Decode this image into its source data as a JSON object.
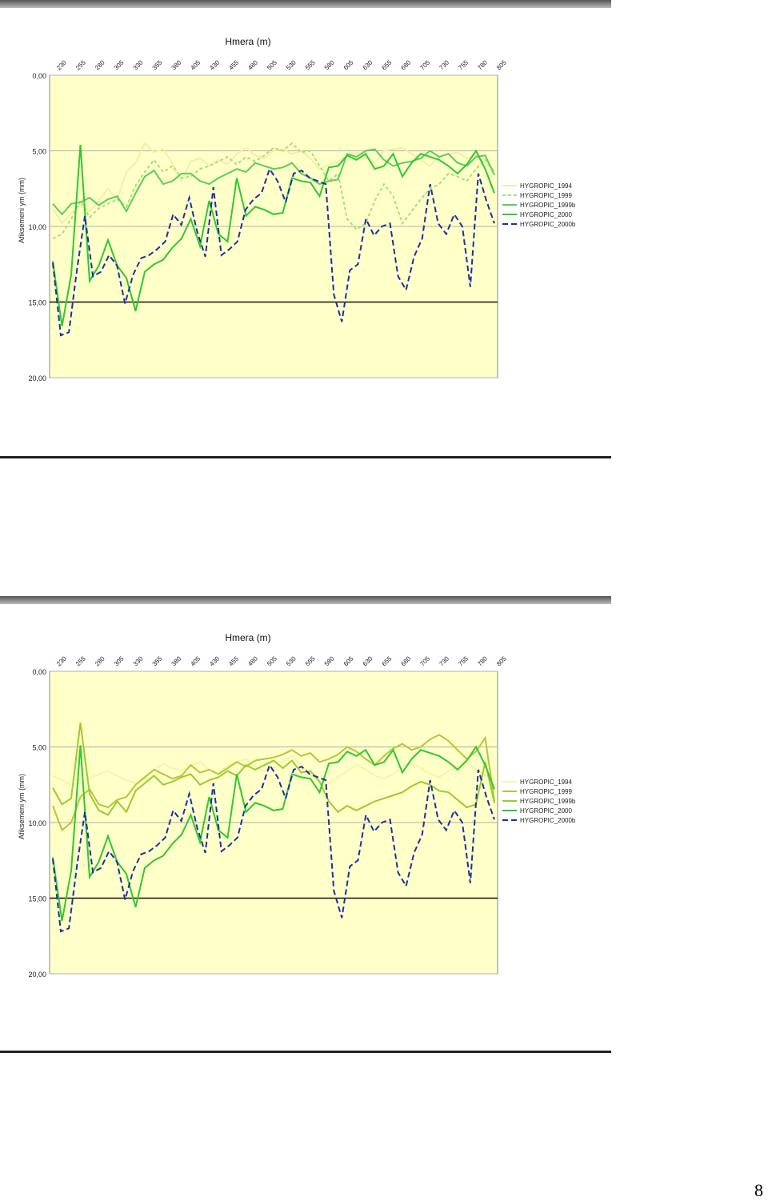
{
  "page_number": "8",
  "chart_data": [
    {
      "type": "line",
      "title": "Hmera (m)",
      "ylabel": "Afiksemeni ym (mm)",
      "ylim": [
        0,
        20
      ],
      "y_inverted": true,
      "y_ticks": [
        "0,00",
        "5,00",
        "10,00",
        "15,00",
        "20,00"
      ],
      "x_tick_labels": [
        "230",
        "255",
        "280",
        "305",
        "330",
        "355",
        "380",
        "405",
        "430",
        "455",
        "480",
        "505",
        "530",
        "555",
        "580",
        "605",
        "630",
        "655",
        "680",
        "705",
        "730",
        "755",
        "780",
        "805"
      ],
      "legend_position": "right",
      "background": "#ffffc8",
      "series": [
        {
          "name": "HYGROPIC_1994",
          "color": "#f0f0a8",
          "dash": "",
          "values": [
            8.8,
            9.8,
            9.1,
            8.6,
            9.0,
            8.3,
            7.5,
            8.2,
            6.4,
            5.8,
            4.5,
            5.1,
            4.9,
            5.8,
            7.0,
            5.7,
            5.5,
            6.0,
            5.6,
            5.9,
            5.2,
            4.8,
            5.3,
            5.5,
            5.0,
            4.9,
            5.2,
            5.0,
            5.5,
            6.2,
            5.9,
            5.7,
            5.3,
            5.1,
            5.4,
            5.8,
            5.0,
            4.9,
            4.8,
            5.2,
            5.6,
            6.0,
            5.4,
            5.2,
            5.1,
            5.5,
            5.3,
            5.8,
            6.3
          ]
        },
        {
          "name": "HYGROPIC_1999",
          "color": "#a6e07a",
          "dash": "4,3",
          "values": [
            10.8,
            10.5,
            9.5,
            8.3,
            9.4,
            8.8,
            8.5,
            8.2,
            8.7,
            7.3,
            6.4,
            5.6,
            6.4,
            6.0,
            6.8,
            6.7,
            6.2,
            6.0,
            5.7,
            5.4,
            5.9,
            5.4,
            5.7,
            5.3,
            4.8,
            5.0,
            4.5,
            5.1,
            5.0,
            6.0,
            7.0,
            6.5,
            9.5,
            10.2,
            9.8,
            8.3,
            7.2,
            8.0,
            9.8,
            9.0,
            8.2,
            7.5,
            7.2,
            6.5,
            6.7,
            7.0,
            6.2,
            5.6,
            6.4
          ]
        },
        {
          "name": "HYGROPIC_1999b",
          "color": "#5ccd5a",
          "dash": "",
          "values": [
            8.5,
            9.2,
            8.5,
            8.4,
            8.1,
            8.6,
            8.2,
            8.0,
            9.0,
            7.8,
            6.7,
            6.3,
            7.2,
            7.0,
            6.5,
            6.5,
            7.0,
            7.2,
            6.8,
            6.5,
            6.2,
            6.4,
            5.8,
            6.0,
            6.2,
            6.1,
            5.8,
            6.5,
            6.8,
            7.2,
            7.0,
            6.9,
            5.2,
            5.4,
            5.0,
            4.9,
            5.6,
            6.0,
            5.8,
            5.7,
            5.5,
            5.0,
            5.4,
            5.2,
            5.8,
            6.0,
            5.4,
            5.3,
            6.6
          ]
        },
        {
          "name": "HYGROPIC_2000",
          "color": "#2fc82f",
          "dash": "",
          "values": [
            12.3,
            16.6,
            13.2,
            4.6,
            13.6,
            12.6,
            10.9,
            12.6,
            13.4,
            15.6,
            13.0,
            12.5,
            12.2,
            11.4,
            10.8,
            9.5,
            11.3,
            8.3,
            10.5,
            11.0,
            6.8,
            9.3,
            8.7,
            8.9,
            9.2,
            9.1,
            6.8,
            7.0,
            7.1,
            8.0,
            6.1,
            6.0,
            5.3,
            5.6,
            5.2,
            6.2,
            6.0,
            5.2,
            6.7,
            5.8,
            5.2,
            5.4,
            5.6,
            6.0,
            6.5,
            5.9,
            5.0,
            6.2,
            7.8
          ]
        },
        {
          "name": "HYGROPIC_2000b",
          "color": "#1a2fa5",
          "dash": "7,4",
          "values": [
            12.4,
            17.2,
            17.0,
            12.9,
            9.3,
            13.3,
            13.0,
            11.9,
            12.6,
            15.1,
            13.2,
            12.1,
            11.9,
            11.5,
            11.0,
            9.2,
            9.9,
            8.1,
            10.4,
            12.0,
            7.4,
            11.9,
            11.5,
            11.0,
            8.9,
            8.2,
            7.8,
            6.2,
            7.0,
            8.4,
            6.5,
            6.3,
            6.8,
            7.0,
            7.2,
            14.5,
            16.3,
            12.9,
            12.5,
            9.5,
            10.6,
            10.0,
            9.8,
            13.3,
            14.2,
            12.0,
            10.8,
            7.2,
            9.8,
            10.5,
            9.2,
            10.0,
            14.0,
            6.5,
            8.3,
            9.8
          ]
        }
      ]
    },
    {
      "type": "line",
      "title": "Hmera (m)",
      "ylabel": "Afiksemeni ym (mm)",
      "ylim": [
        0,
        20
      ],
      "y_inverted": true,
      "y_ticks": [
        "0,00",
        "5,00",
        "10,00",
        "15,00",
        "20,00"
      ],
      "x_tick_labels": [
        "230",
        "255",
        "280",
        "305",
        "330",
        "355",
        "380",
        "405",
        "430",
        "455",
        "480",
        "505",
        "530",
        "555",
        "580",
        "605",
        "630",
        "655",
        "680",
        "705",
        "730",
        "755",
        "780",
        "805"
      ],
      "legend_position": "right",
      "background": "#ffffc8",
      "series": [
        {
          "name": "HYGROPIC_1994",
          "color": "#f4f4b0",
          "dash": "",
          "values": [
            6.9,
            7.2,
            7.5,
            7.4,
            7.1,
            6.8,
            6.6,
            6.9,
            7.2,
            7.4,
            7.1,
            6.5,
            6.1,
            6.4,
            6.6,
            6.2,
            6.0,
            6.5,
            6.8,
            6.2,
            6.0,
            5.8,
            6.3,
            6.6,
            6.4,
            6.0,
            5.6,
            6.2,
            6.9,
            7.2,
            7.4,
            7.0,
            6.6,
            6.2,
            6.5,
            6.9,
            7.1,
            6.8,
            6.3,
            6.1,
            6.4,
            6.8,
            7.0,
            6.6,
            6.3,
            6.0,
            6.5,
            6.9,
            7.3
          ]
        },
        {
          "name": "HYGROPIC_1999",
          "color": "#b2c83a",
          "dash": "",
          "values": [
            8.9,
            10.5,
            10.0,
            8.3,
            7.8,
            8.8,
            9.0,
            8.5,
            8.3,
            7.5,
            7.0,
            6.5,
            6.8,
            7.1,
            6.9,
            6.2,
            6.7,
            6.5,
            6.8,
            6.4,
            6.0,
            6.3,
            5.9,
            5.8,
            5.7,
            5.5,
            5.2,
            5.6,
            5.4,
            6.0,
            5.8,
            5.5,
            5.0,
            5.3,
            5.8,
            6.2,
            5.6,
            5.1,
            4.8,
            5.2,
            5.0,
            4.5,
            4.2,
            4.6,
            5.2,
            5.8,
            5.3,
            4.4,
            8.6
          ]
        },
        {
          "name": "HYGROPIC_1999b",
          "color": "#9acb2d",
          "dash": "",
          "values": [
            7.7,
            8.8,
            8.4,
            3.4,
            8.1,
            9.2,
            9.5,
            8.6,
            9.3,
            7.9,
            7.4,
            6.9,
            7.5,
            7.3,
            7.0,
            6.8,
            7.5,
            7.2,
            7.0,
            6.6,
            6.9,
            6.2,
            6.5,
            6.2,
            5.9,
            6.4,
            5.9,
            6.7,
            6.6,
            7.3,
            8.6,
            9.3,
            8.9,
            9.2,
            8.9,
            8.6,
            8.4,
            8.2,
            8.0,
            7.6,
            7.3,
            7.5,
            7.9,
            8.0,
            8.5,
            9.0,
            8.8,
            6.0,
            8.7
          ]
        },
        {
          "name": "HYGROPIC_2000",
          "color": "#2fc82f",
          "dash": "",
          "values": [
            12.3,
            16.5,
            13.2,
            4.9,
            13.6,
            12.6,
            10.9,
            12.6,
            13.4,
            15.6,
            13.0,
            12.5,
            12.2,
            11.4,
            10.8,
            9.5,
            11.3,
            8.3,
            10.5,
            11.0,
            6.8,
            9.3,
            8.7,
            8.9,
            9.2,
            9.1,
            6.8,
            7.0,
            7.1,
            8.0,
            6.1,
            6.0,
            5.3,
            5.6,
            5.2,
            6.2,
            6.0,
            5.2,
            6.7,
            5.8,
            5.2,
            5.4,
            5.6,
            6.0,
            6.5,
            5.9,
            5.0,
            6.2,
            7.8
          ]
        },
        {
          "name": "HYGROPIC_2000b",
          "color": "#1a2fa5",
          "dash": "7,4",
          "values": [
            12.4,
            17.2,
            17.0,
            12.9,
            9.3,
            13.3,
            13.0,
            11.9,
            12.6,
            15.1,
            13.2,
            12.1,
            11.9,
            11.5,
            11.0,
            9.2,
            9.9,
            8.1,
            10.4,
            12.0,
            7.4,
            11.9,
            11.5,
            11.0,
            8.9,
            8.2,
            7.8,
            6.2,
            7.0,
            8.4,
            6.5,
            6.3,
            6.8,
            7.0,
            7.2,
            14.5,
            16.3,
            12.9,
            12.5,
            9.5,
            10.6,
            10.0,
            9.8,
            13.3,
            14.2,
            12.0,
            10.8,
            7.2,
            9.8,
            10.5,
            9.2,
            10.0,
            14.0,
            6.5,
            8.3,
            9.8
          ]
        }
      ]
    }
  ]
}
